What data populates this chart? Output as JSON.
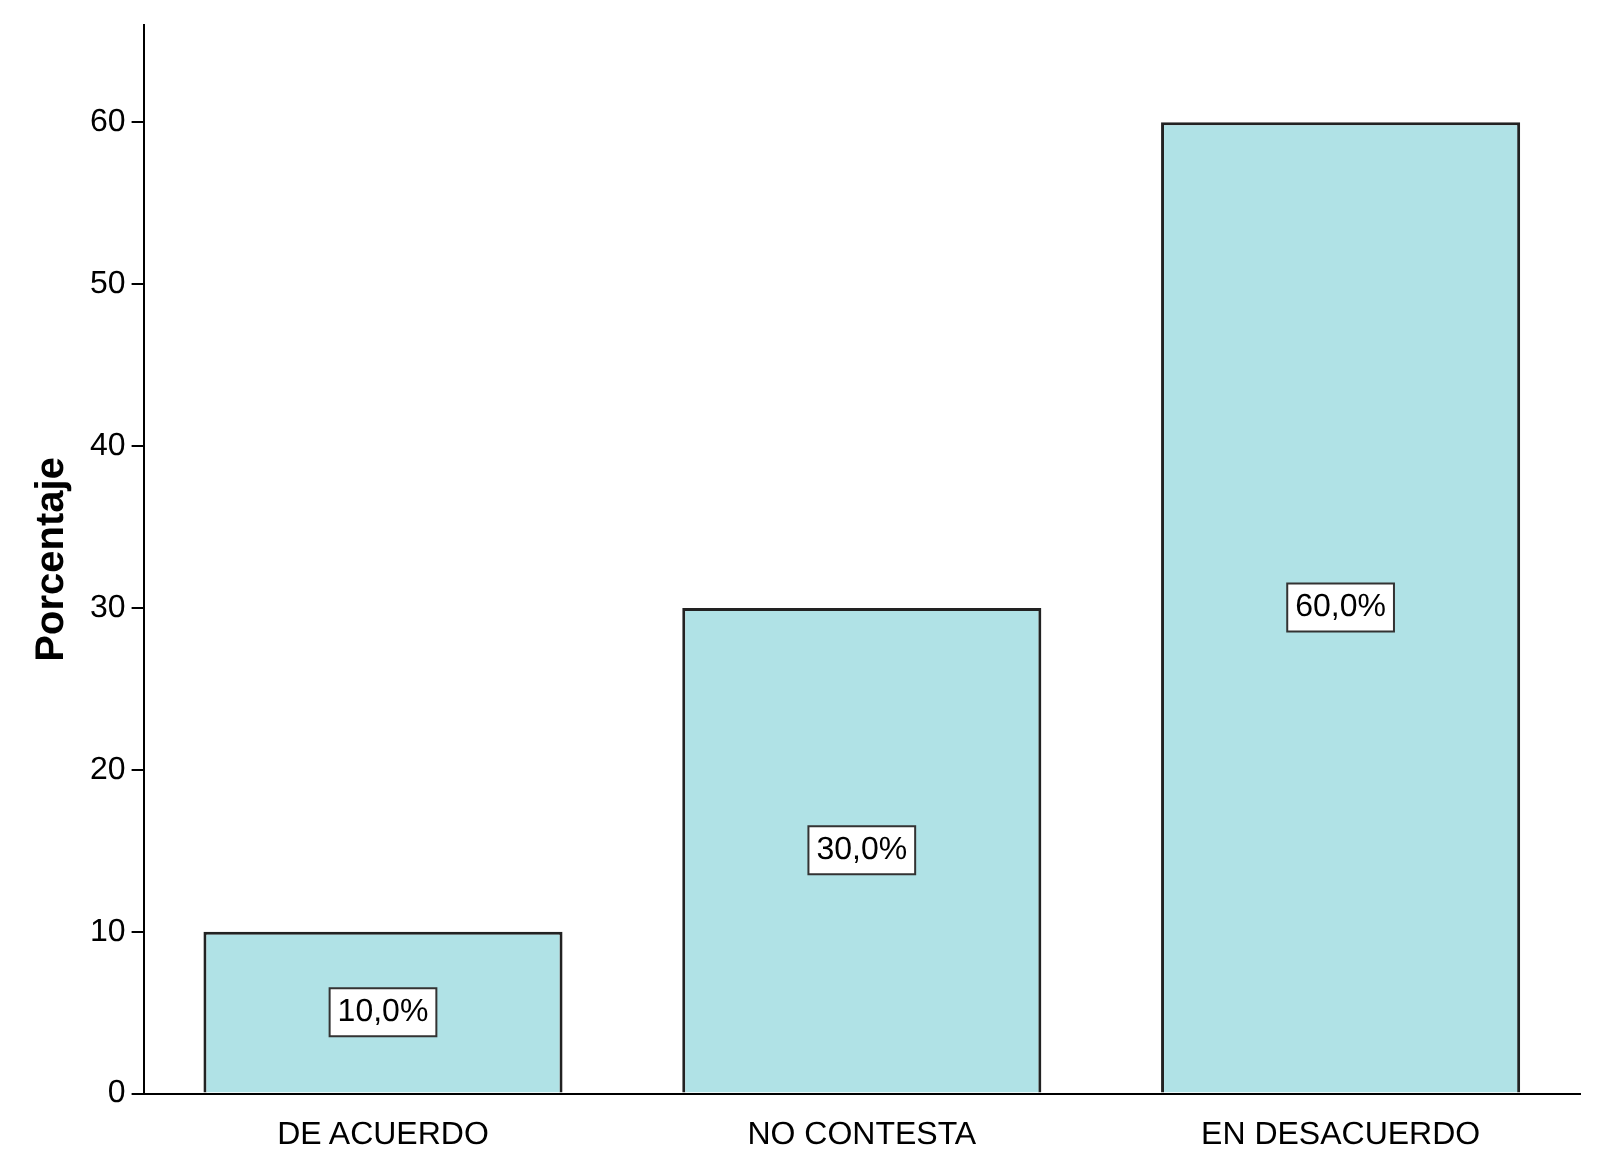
{
  "chart_data": {
    "type": "bar",
    "ylabel": "Porcentaje",
    "categories": [
      "DE ACUERDO",
      "NO CONTESTA",
      "EN DESACUERDO"
    ],
    "values": [
      10,
      30,
      60
    ],
    "color": "#b0e2e6",
    "value_labels": [
      "10,0%",
      "30,0%",
      "60,0%"
    ],
    "ylim": [
      0,
      66
    ],
    "yticks": [
      0,
      10,
      20,
      30,
      40,
      50,
      60
    ],
    "grid": false,
    "legend": false
  }
}
